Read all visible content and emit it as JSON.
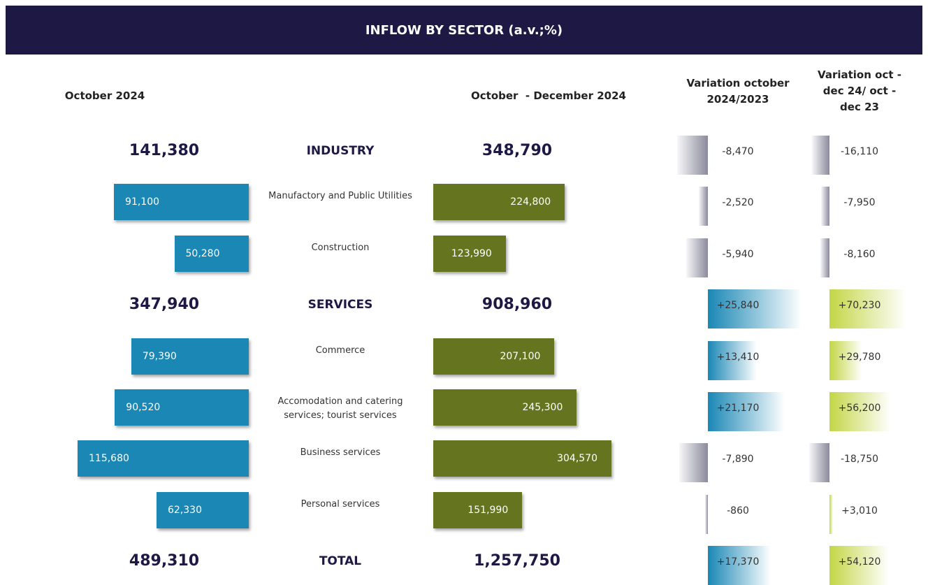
{
  "chart_data": {
    "type": "bar",
    "title": "INFLOW BY SECTOR (a.v.;%)",
    "categories": [
      "INDUSTRY",
      "Manufactory and Public Utilities",
      "Construction",
      "SERVICES",
      "Commerce",
      "Accomodation and catering services; tourist services",
      "Business services",
      "Personal services",
      "TOTAL"
    ],
    "series": [
      {
        "name": "October 2024",
        "color": "#1a87b5",
        "values": [
          141380,
          91100,
          50280,
          347940,
          79390,
          90520,
          115680,
          62330,
          489310
        ],
        "value_labels": [
          "141,380",
          "91,100",
          "50,280",
          "347,940",
          "79,390",
          "90,520",
          "115,680",
          "62,330",
          "489,310"
        ]
      },
      {
        "name": "October  - December 2024",
        "color": "#65751f",
        "values": [
          348790,
          224800,
          123990,
          908960,
          207100,
          245300,
          304570,
          151990,
          1257750
        ],
        "value_labels": [
          "348,790",
          "224,800",
          "123,990",
          "908,960",
          "207,100",
          "245,300",
          "304,570",
          "151,990",
          "1,257,750"
        ]
      },
      {
        "name": "Variation october 2024/2023",
        "color": "#1a87b5",
        "values": [
          -8470,
          -2520,
          -5940,
          25840,
          13410,
          21170,
          -7890,
          -860,
          17370
        ],
        "value_labels": [
          "-8,470",
          "-2,520",
          "-5,940",
          "+25,840",
          "+13,410",
          "+21,170",
          "-7,890",
          "-860",
          "+17,370"
        ]
      },
      {
        "name": "Variation oct - dec 24/ oct - dec 23",
        "color": "#c3d646",
        "values": [
          -16110,
          -7950,
          -8160,
          70230,
          29780,
          56200,
          -18750,
          3010,
          54120
        ],
        "value_labels": [
          "-16,110",
          "-7,950",
          "-8,160",
          "+70,230",
          "+29,780",
          "+56,200",
          "-18,750",
          "+3,010",
          "+54,120"
        ]
      }
    ]
  }
}
